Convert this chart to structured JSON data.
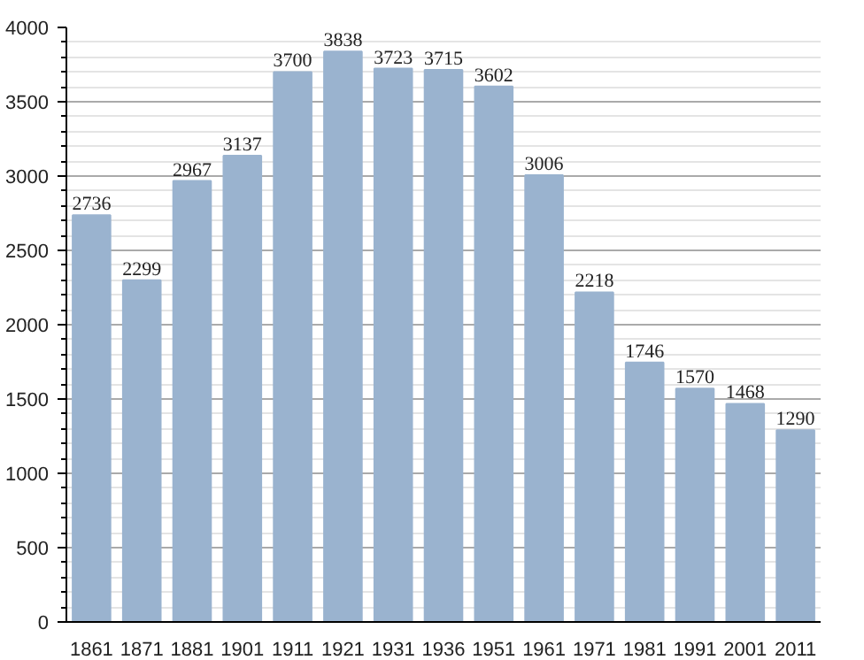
{
  "chart_data": {
    "type": "bar",
    "categories": [
      "1861",
      "1871",
      "1881",
      "1901",
      "1911",
      "1921",
      "1931",
      "1936",
      "1951",
      "1961",
      "1971",
      "1981",
      "1991",
      "2001",
      "2011"
    ],
    "values": [
      2736,
      2299,
      2967,
      3137,
      3700,
      3838,
      3723,
      3715,
      3602,
      3006,
      2218,
      1746,
      1570,
      1468,
      1290
    ],
    "color": "#9ab3cf",
    "ylim": [
      0,
      4000
    ],
    "yticks": [
      0,
      500,
      1000,
      1500,
      2000,
      2500,
      3000,
      3500,
      4000
    ],
    "grid": "y",
    "data_labels": true
  }
}
